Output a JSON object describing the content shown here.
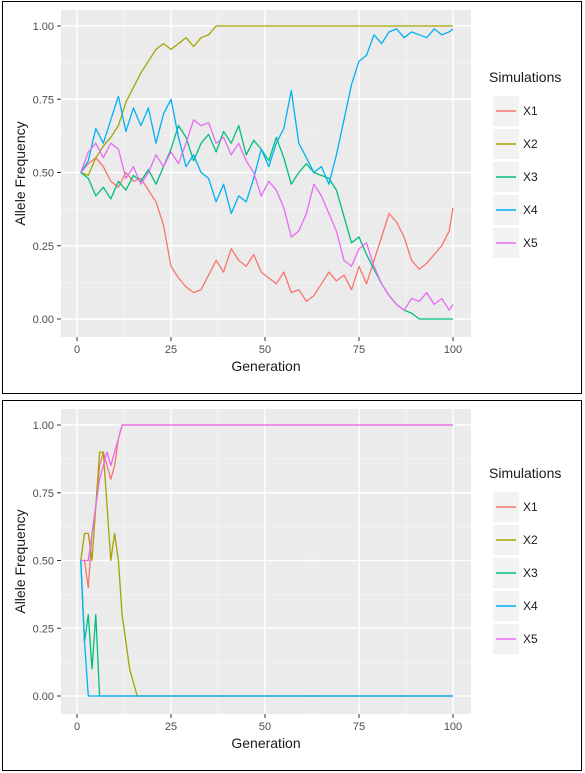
{
  "chart_data": [
    {
      "type": "line",
      "title": "",
      "xlabel": "Generation",
      "ylabel": "Allele Frequency",
      "xlim": [
        0,
        100
      ],
      "ylim": [
        0,
        1
      ],
      "xticks": [
        0,
        25,
        50,
        75,
        100
      ],
      "xtick_labels": [
        "0",
        "25",
        "50",
        "75",
        "100"
      ],
      "yticks": [
        0,
        0.25,
        0.5,
        0.75,
        1
      ],
      "ytick_labels": [
        "0.00",
        "0.25",
        "0.50",
        "0.75",
        "1.00"
      ],
      "grid": true,
      "legend_title": "Simulations",
      "legend_position": "right",
      "series": [
        {
          "name": "X1",
          "color": "#F8766D",
          "x": [
            1,
            3,
            5,
            7,
            9,
            11,
            13,
            15,
            17,
            19,
            21,
            23,
            25,
            27,
            29,
            31,
            33,
            35,
            37,
            39,
            41,
            43,
            45,
            47,
            49,
            51,
            53,
            55,
            57,
            59,
            61,
            63,
            65,
            67,
            69,
            71,
            73,
            75,
            77,
            79,
            81,
            83,
            85,
            87,
            89,
            91,
            93,
            95,
            97,
            99,
            100
          ],
          "y": [
            0.5,
            0.53,
            0.55,
            0.52,
            0.47,
            0.45,
            0.5,
            0.47,
            0.48,
            0.44,
            0.4,
            0.32,
            0.18,
            0.14,
            0.11,
            0.09,
            0.1,
            0.15,
            0.2,
            0.16,
            0.24,
            0.2,
            0.18,
            0.22,
            0.16,
            0.14,
            0.12,
            0.16,
            0.09,
            0.1,
            0.06,
            0.08,
            0.12,
            0.16,
            0.13,
            0.15,
            0.1,
            0.18,
            0.12,
            0.2,
            0.28,
            0.36,
            0.33,
            0.28,
            0.2,
            0.17,
            0.19,
            0.22,
            0.25,
            0.3,
            0.38
          ]
        },
        {
          "name": "X2",
          "color": "#A3A500",
          "x": [
            1,
            3,
            5,
            7,
            9,
            11,
            13,
            15,
            17,
            19,
            21,
            23,
            25,
            27,
            29,
            31,
            33,
            35,
            37,
            39,
            41,
            43,
            45,
            47,
            49,
            51,
            53,
            55,
            57,
            59,
            61,
            63,
            65,
            67,
            69,
            71,
            73,
            75,
            77,
            79,
            81,
            83,
            85,
            87,
            89,
            91,
            93,
            95,
            97,
            99,
            100
          ],
          "y": [
            0.5,
            0.49,
            0.55,
            0.59,
            0.62,
            0.66,
            0.74,
            0.79,
            0.84,
            0.88,
            0.92,
            0.94,
            0.92,
            0.94,
            0.96,
            0.93,
            0.96,
            0.97,
            1.0,
            1.0,
            1.0,
            1.0,
            1.0,
            1.0,
            1.0,
            1.0,
            1.0,
            1.0,
            1.0,
            1.0,
            1.0,
            1.0,
            1.0,
            1.0,
            1.0,
            1.0,
            1.0,
            1.0,
            1.0,
            1.0,
            1.0,
            1.0,
            1.0,
            1.0,
            1.0,
            1.0,
            1.0,
            1.0,
            1.0,
            1.0,
            1.0
          ]
        },
        {
          "name": "X3",
          "color": "#00BF7D",
          "x": [
            1,
            3,
            5,
            7,
            9,
            11,
            13,
            15,
            17,
            19,
            21,
            23,
            25,
            27,
            29,
            31,
            33,
            35,
            37,
            39,
            41,
            43,
            45,
            47,
            49,
            51,
            53,
            55,
            57,
            59,
            61,
            63,
            65,
            67,
            69,
            71,
            73,
            75,
            77,
            79,
            81,
            83,
            85,
            87,
            89,
            91,
            93,
            95,
            97,
            99,
            100
          ],
          "y": [
            0.5,
            0.48,
            0.42,
            0.45,
            0.41,
            0.47,
            0.44,
            0.49,
            0.47,
            0.51,
            0.46,
            0.52,
            0.58,
            0.66,
            0.62,
            0.54,
            0.6,
            0.63,
            0.57,
            0.64,
            0.6,
            0.66,
            0.56,
            0.61,
            0.58,
            0.54,
            0.62,
            0.55,
            0.46,
            0.5,
            0.53,
            0.5,
            0.49,
            0.48,
            0.44,
            0.35,
            0.26,
            0.28,
            0.22,
            0.17,
            0.12,
            0.08,
            0.05,
            0.03,
            0.02,
            0.0,
            0.0,
            0.0,
            0.0,
            0.0,
            0.0
          ]
        },
        {
          "name": "X4",
          "color": "#00B0F6",
          "x": [
            1,
            3,
            5,
            7,
            9,
            11,
            13,
            15,
            17,
            19,
            21,
            23,
            25,
            27,
            29,
            31,
            33,
            35,
            37,
            39,
            41,
            43,
            45,
            47,
            49,
            51,
            53,
            55,
            57,
            59,
            61,
            63,
            65,
            67,
            69,
            71,
            73,
            75,
            77,
            79,
            81,
            83,
            85,
            87,
            89,
            91,
            93,
            95,
            97,
            99,
            100
          ],
          "y": [
            0.5,
            0.54,
            0.65,
            0.6,
            0.68,
            0.76,
            0.64,
            0.72,
            0.66,
            0.72,
            0.6,
            0.7,
            0.75,
            0.62,
            0.52,
            0.56,
            0.5,
            0.48,
            0.4,
            0.46,
            0.36,
            0.42,
            0.4,
            0.48,
            0.58,
            0.52,
            0.6,
            0.65,
            0.78,
            0.6,
            0.55,
            0.5,
            0.52,
            0.46,
            0.56,
            0.68,
            0.8,
            0.88,
            0.9,
            0.97,
            0.94,
            0.98,
            0.99,
            0.96,
            0.98,
            0.97,
            0.96,
            0.99,
            0.97,
            0.98,
            0.99
          ]
        },
        {
          "name": "X5",
          "color": "#E76BF3",
          "x": [
            1,
            3,
            5,
            7,
            9,
            11,
            13,
            15,
            17,
            19,
            21,
            23,
            25,
            27,
            29,
            31,
            33,
            35,
            37,
            39,
            41,
            43,
            45,
            47,
            49,
            51,
            53,
            55,
            57,
            59,
            61,
            63,
            65,
            67,
            69,
            71,
            73,
            75,
            77,
            79,
            81,
            83,
            85,
            87,
            89,
            91,
            93,
            95,
            97,
            99,
            100
          ],
          "y": [
            0.5,
            0.57,
            0.6,
            0.55,
            0.6,
            0.58,
            0.48,
            0.52,
            0.46,
            0.5,
            0.56,
            0.52,
            0.57,
            0.53,
            0.6,
            0.68,
            0.66,
            0.67,
            0.6,
            0.62,
            0.56,
            0.6,
            0.54,
            0.5,
            0.42,
            0.47,
            0.44,
            0.38,
            0.28,
            0.3,
            0.36,
            0.46,
            0.42,
            0.36,
            0.3,
            0.2,
            0.18,
            0.24,
            0.26,
            0.18,
            0.12,
            0.08,
            0.05,
            0.03,
            0.07,
            0.06,
            0.09,
            0.05,
            0.07,
            0.03,
            0.05
          ]
        }
      ]
    },
    {
      "type": "line",
      "title": "",
      "xlabel": "Generation",
      "ylabel": "Allele Frequency",
      "xlim": [
        0,
        100
      ],
      "ylim": [
        0,
        1
      ],
      "xticks": [
        0,
        25,
        50,
        75,
        100
      ],
      "xtick_labels": [
        "0",
        "25",
        "50",
        "75",
        "100"
      ],
      "yticks": [
        0,
        0.25,
        0.5,
        0.75,
        1
      ],
      "ytick_labels": [
        "0.00",
        "0.25",
        "0.50",
        "0.75",
        "1.00"
      ],
      "grid": true,
      "legend_title": "Simulations",
      "legend_position": "right",
      "series": [
        {
          "name": "X1",
          "color": "#F8766D",
          "x": [
            1,
            2,
            3,
            4,
            5,
            6,
            7,
            8,
            9,
            10,
            11,
            12,
            100
          ],
          "y": [
            0.5,
            0.5,
            0.4,
            0.6,
            0.7,
            0.85,
            0.9,
            0.85,
            0.8,
            0.85,
            0.95,
            1.0,
            1.0
          ]
        },
        {
          "name": "X2",
          "color": "#A3A500",
          "x": [
            1,
            2,
            3,
            4,
            5,
            6,
            7,
            8,
            9,
            10,
            11,
            12,
            13,
            14,
            15,
            16,
            100
          ],
          "y": [
            0.5,
            0.6,
            0.6,
            0.5,
            0.7,
            0.9,
            0.9,
            0.7,
            0.5,
            0.6,
            0.5,
            0.3,
            0.2,
            0.1,
            0.05,
            0.0,
            0.0
          ]
        },
        {
          "name": "X3",
          "color": "#00BF7D",
          "x": [
            1,
            2,
            3,
            4,
            5,
            6,
            100
          ],
          "y": [
            0.5,
            0.2,
            0.3,
            0.1,
            0.3,
            0.0,
            0.0
          ]
        },
        {
          "name": "X4",
          "color": "#00B0F6",
          "x": [
            1,
            2,
            3,
            100
          ],
          "y": [
            0.5,
            0.2,
            0.0,
            0.0
          ]
        },
        {
          "name": "X5",
          "color": "#E76BF3",
          "x": [
            1,
            2,
            3,
            4,
            5,
            6,
            7,
            8,
            9,
            10,
            11,
            12,
            100
          ],
          "y": [
            0.5,
            0.5,
            0.5,
            0.6,
            0.7,
            0.8,
            0.85,
            0.9,
            0.85,
            0.9,
            0.95,
            1.0,
            1.0
          ]
        }
      ]
    }
  ]
}
